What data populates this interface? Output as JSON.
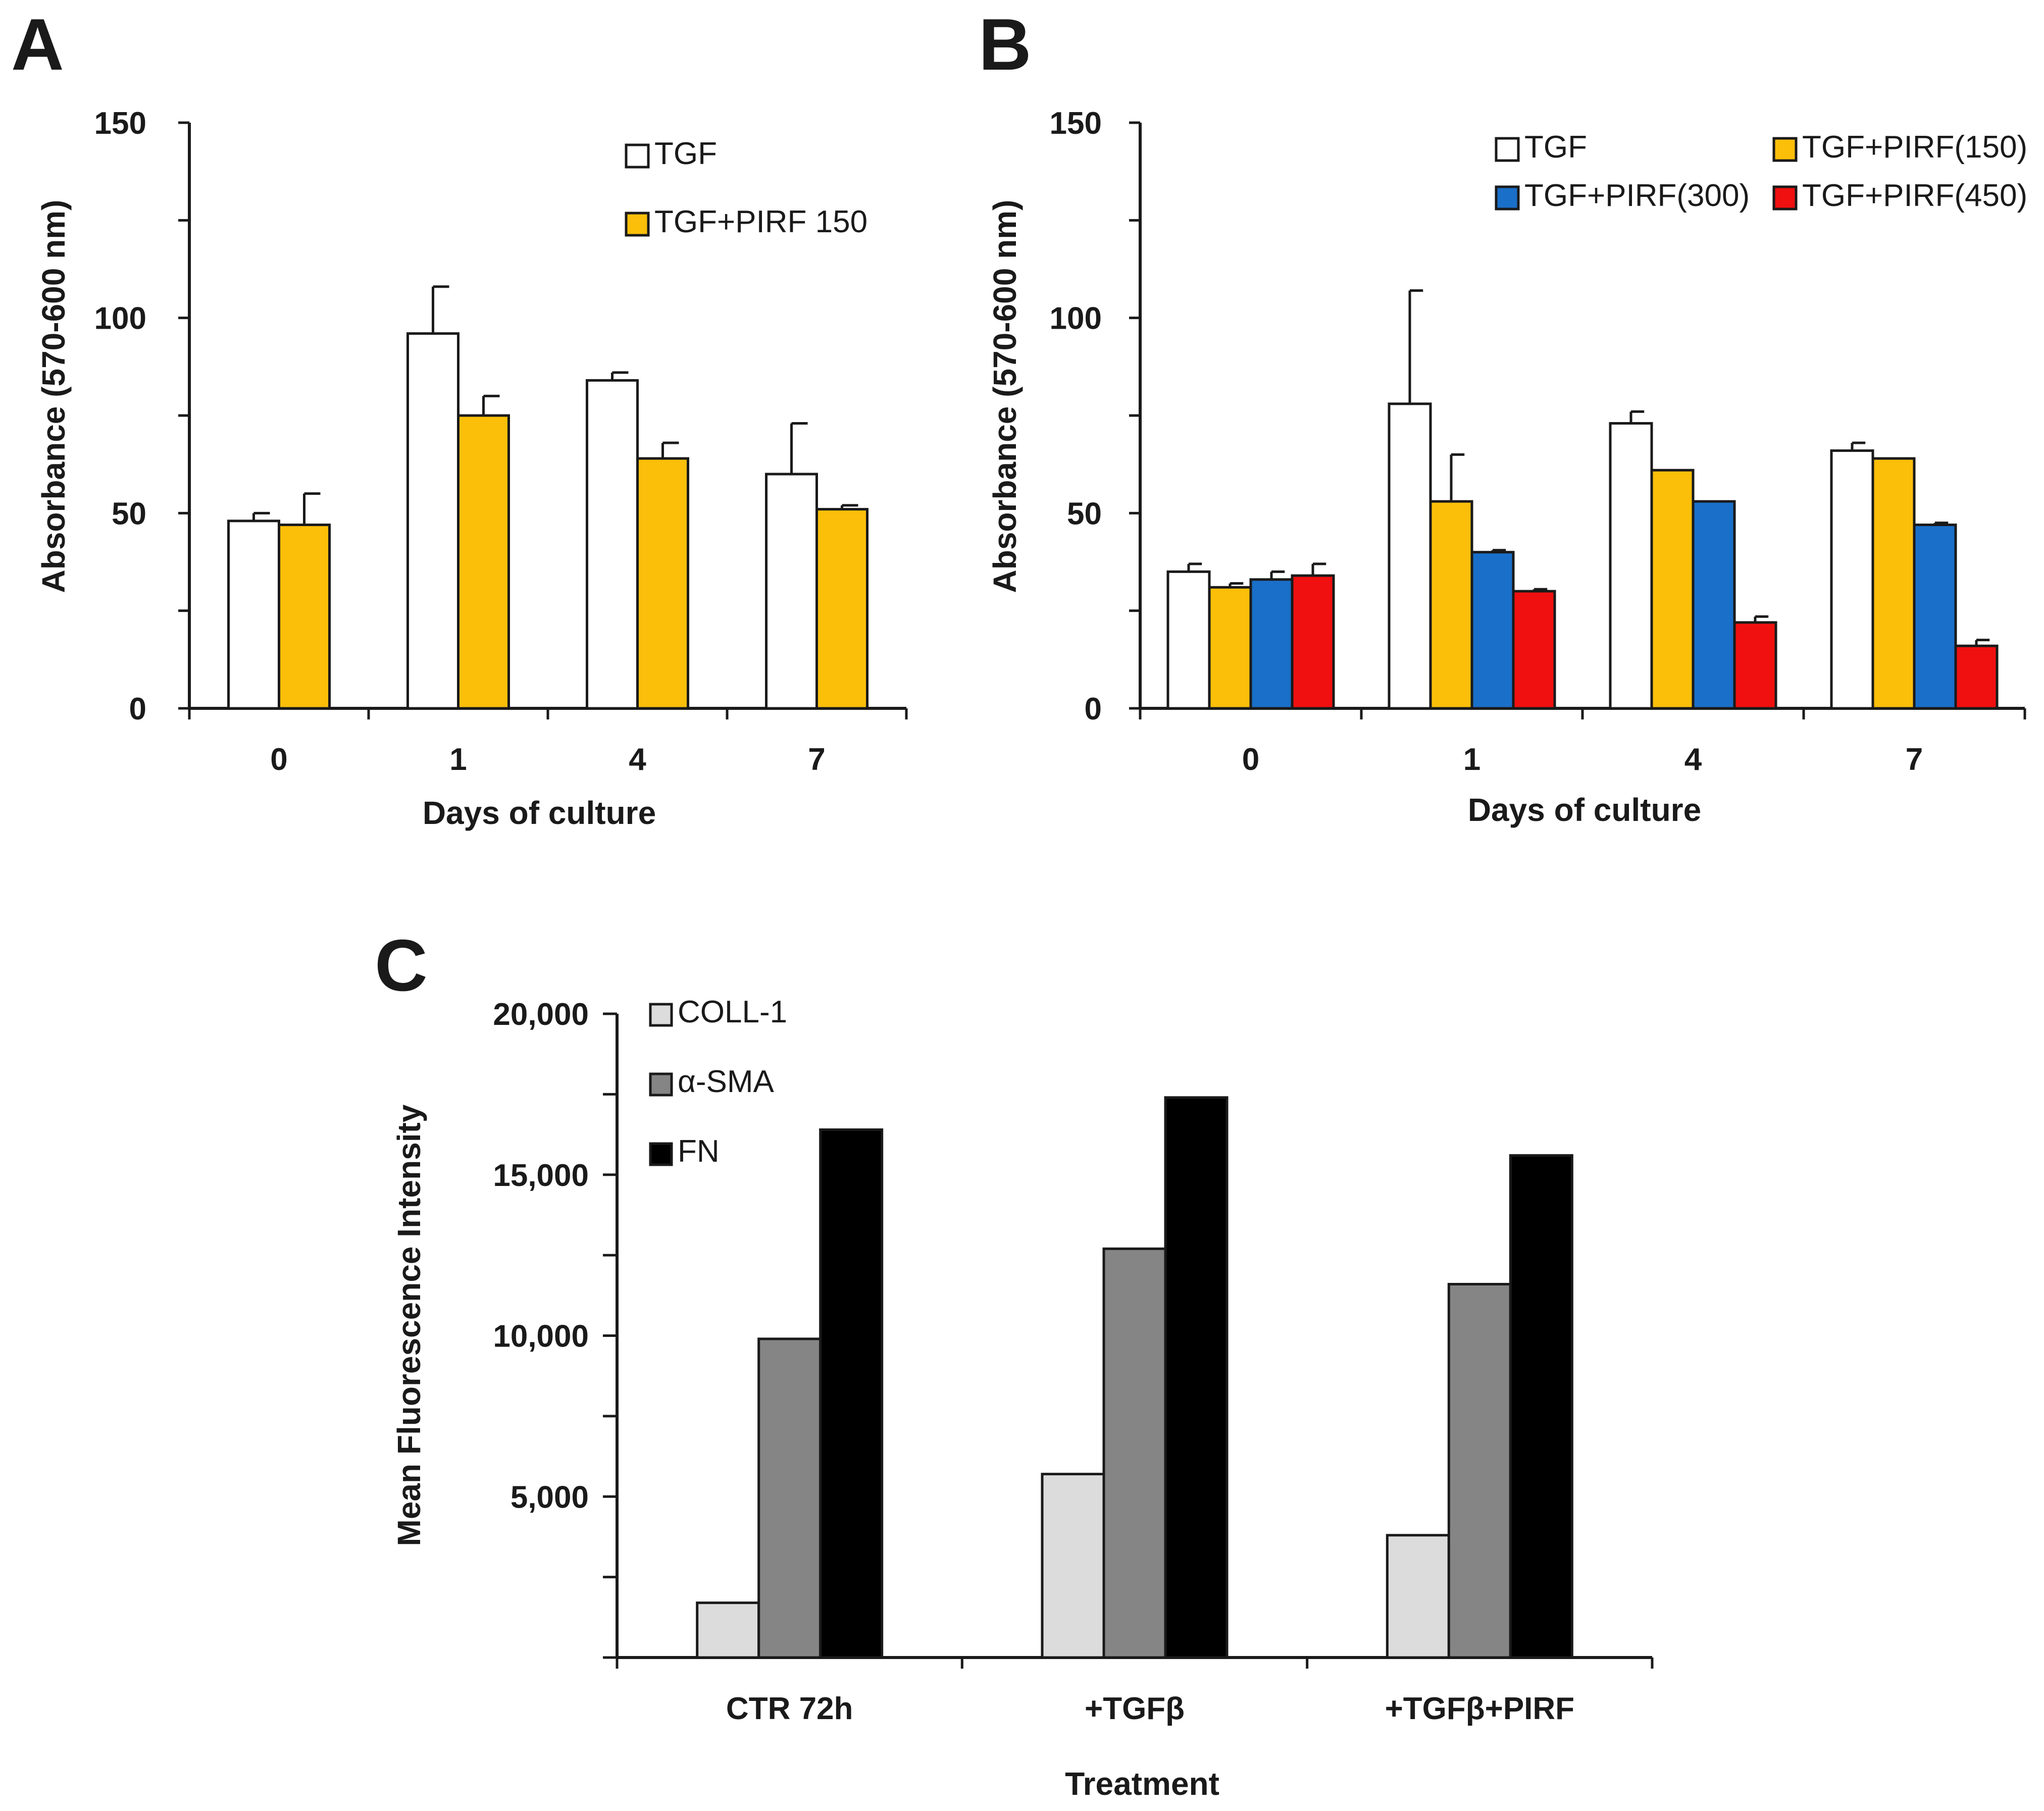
{
  "colors": {
    "TGF": "#ffffff",
    "PIRF150": "#fbbf0a",
    "PIRF300": "#1a6fc8",
    "PIRF450": "#f01010",
    "COLL1": "#dcdcdc",
    "aSMA": "#858585",
    "FN": "#000000",
    "axis": "#1a1a1a"
  },
  "chart_data": [
    {
      "panel": "A",
      "type": "bar",
      "title": "",
      "xlabel": "Days of culture",
      "ylabel": "Absorbance (570-600 nm)",
      "ylim": [
        0,
        150
      ],
      "yticks": [
        "0",
        "50",
        "100",
        "150"
      ],
      "categories": [
        "0",
        "1",
        "4",
        "7"
      ],
      "legend_position": "top-right",
      "legend_columns": 1,
      "series": [
        {
          "name": "TGF",
          "color_key": "TGF",
          "values": [
            48,
            96,
            84,
            60
          ],
          "errors": [
            2,
            12,
            2,
            13
          ]
        },
        {
          "name": "TGF+PIRF 150",
          "color_key": "PIRF150",
          "values": [
            47,
            75,
            64,
            51
          ],
          "errors": [
            8,
            5,
            4,
            1
          ]
        }
      ]
    },
    {
      "panel": "B",
      "type": "bar",
      "title": "",
      "xlabel": "Days of culture",
      "ylabel": "Absorbance (570-600 nm)",
      "ylim": [
        0,
        150
      ],
      "yticks": [
        "0",
        "50",
        "100",
        "150"
      ],
      "categories": [
        "0",
        "1",
        "4",
        "7"
      ],
      "legend_position": "top-right",
      "legend_columns": 2,
      "series": [
        {
          "name": "TGF",
          "color_key": "TGF",
          "values": [
            35,
            78,
            73,
            66
          ],
          "errors": [
            2,
            29,
            3,
            2
          ]
        },
        {
          "name": "TGF+PIRF(150)",
          "color_key": "PIRF150",
          "values": [
            31,
            53,
            61,
            64
          ],
          "errors": [
            1,
            12,
            0,
            0
          ]
        },
        {
          "name": "TGF+PIRF(300)",
          "color_key": "PIRF300",
          "values": [
            33,
            40,
            53,
            47
          ],
          "errors": [
            2,
            0.5,
            0,
            0.5
          ]
        },
        {
          "name": "TGF+PIRF(450)",
          "color_key": "PIRF450",
          "values": [
            34,
            30,
            22,
            16
          ],
          "errors": [
            3,
            0.5,
            1.5,
            1.5
          ]
        }
      ]
    },
    {
      "panel": "C",
      "type": "bar",
      "title": "",
      "xlabel": "Treatment",
      "ylabel": "Mean Fluorescence Intensity",
      "ylim": [
        0,
        20000
      ],
      "yticks": [
        "5,000",
        "10,000",
        "15,000",
        "20,000"
      ],
      "categories": [
        "CTR 72h",
        "+TGFβ",
        "+TGFβ+PIRF"
      ],
      "legend_position": "top-left",
      "legend_columns": 1,
      "series": [
        {
          "name": "COLL-1",
          "color_key": "COLL1",
          "values": [
            1700,
            5700,
            3800
          ]
        },
        {
          "name": "α-SMA",
          "color_key": "aSMA",
          "values": [
            9900,
            12700,
            11600
          ]
        },
        {
          "name": "FN",
          "color_key": "FN",
          "values": [
            16400,
            17400,
            15600
          ]
        }
      ]
    }
  ]
}
